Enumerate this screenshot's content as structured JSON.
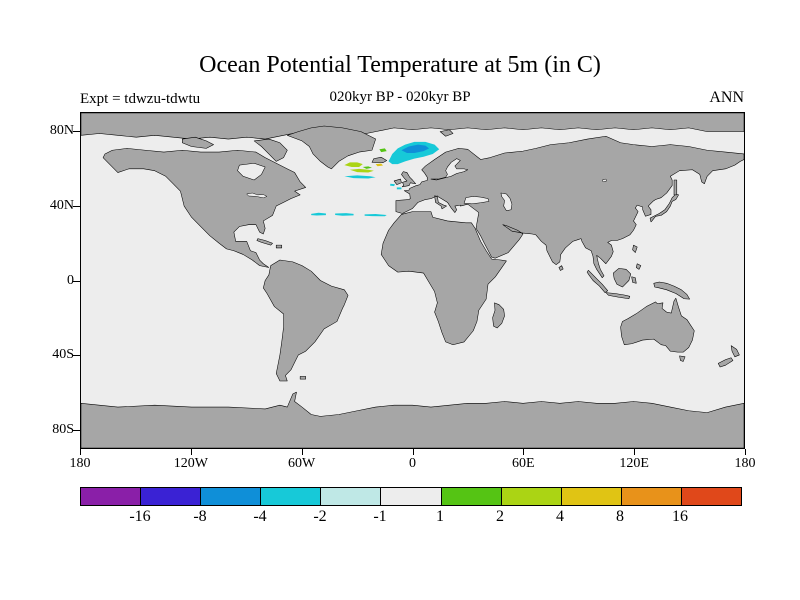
{
  "title": "Ocean Potential Temperature at 5m (in C)",
  "header": {
    "experiment": "Expt = tdwzu-tdwtu",
    "period": "020kyr BP - 020kyr BP",
    "season": "ANN"
  },
  "axes": {
    "lat_ticks": [
      "80N",
      "40N",
      "0",
      "40S",
      "80S"
    ],
    "lat_tick_values": [
      80,
      40,
      0,
      -40,
      -80
    ],
    "lon_ticks": [
      "180",
      "120W",
      "60W",
      "0",
      "60E",
      "120E",
      "180"
    ],
    "lon_tick_values": [
      -180,
      -120,
      -60,
      0,
      60,
      120,
      180
    ]
  },
  "colorbar": {
    "labels": [
      "-16",
      "-8",
      "-4",
      "-2",
      "-1",
      "1",
      "2",
      "4",
      "8",
      "16"
    ],
    "colors": [
      "#8a1fa8",
      "#3a22d4",
      "#0f8fd8",
      "#17c9d8",
      "#bfe8e6",
      "#ededed",
      "#55c414",
      "#abd414",
      "#e0c414",
      "#e8921a",
      "#e0481a"
    ]
  },
  "map": {
    "land_color": "#a6a6a6",
    "ocean_color": "#ededed"
  },
  "chart_data": {
    "type": "heatmap",
    "title": "Ocean Potential Temperature at 5m (in C)",
    "subtitle": "020kyr BP - 020kyr BP",
    "experiment": "tdwzu-tdwtu",
    "season": "ANN",
    "units": "C",
    "projection": "equirectangular",
    "lon_range": [
      -180,
      180
    ],
    "lat_range": [
      -90,
      90
    ],
    "levels": [
      -16,
      -8,
      -4,
      -2,
      -1,
      1,
      2,
      4,
      8,
      16
    ],
    "background_bin": "-1 to 1",
    "anomalies": [
      {
        "region": "Nordic Seas / around Iceland",
        "lon": [
          -13,
          15
        ],
        "lat": [
          62,
          75
        ],
        "value_bin": "-4 to -2"
      },
      {
        "region": "Norwegian Sea core",
        "lon": [
          -6,
          9
        ],
        "lat": [
          68,
          73
        ],
        "value_bin": "-8 to -4"
      },
      {
        "region": "Southeast of Greenland (Irminger Sea)",
        "lon": [
          -37,
          -20
        ],
        "lat": [
          57,
          64
        ],
        "value_bin": "2 to 4"
      },
      {
        "region": "Denmark Strait specks",
        "lon": [
          -18,
          -14
        ],
        "lat": [
          69,
          71
        ],
        "value_bin": "1 to 2"
      },
      {
        "region": "Subpolar North Atlantic streak",
        "lon": [
          -37,
          -20
        ],
        "lat": [
          55,
          56.5
        ],
        "value_bin": "-4 to -2"
      },
      {
        "region": "Subtropical North Atlantic dashes",
        "lon": [
          -55,
          -14
        ],
        "lat": [
          34,
          36.5
        ],
        "value_bin": "-4 to -2"
      },
      {
        "region": "Near Bay of Biscay dots",
        "lon": [
          -12,
          -6
        ],
        "lat": [
          49,
          52
        ],
        "value_bin": "-4 to -2"
      }
    ]
  }
}
